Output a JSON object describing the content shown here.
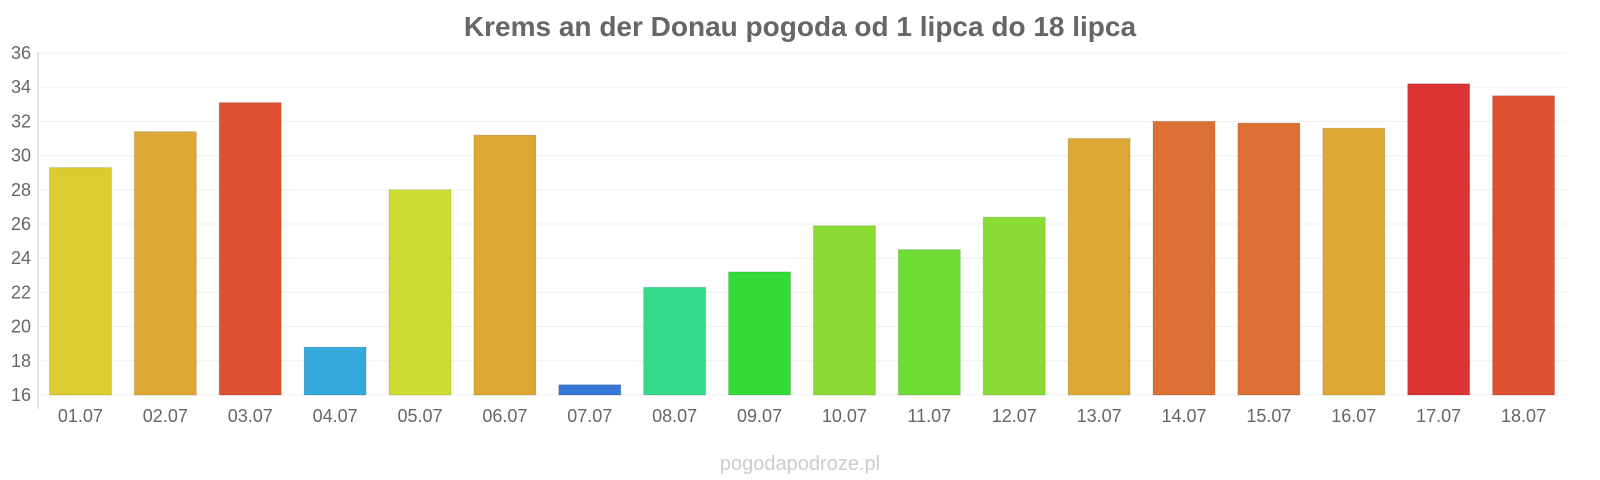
{
  "chart_data": {
    "type": "bar",
    "title": "Krems an der Donau pogoda od 1 lipca do 18 lipca",
    "xlabel": "",
    "ylabel": "",
    "ylim": [
      16,
      36
    ],
    "yticks": [
      16,
      18,
      20,
      22,
      24,
      26,
      28,
      30,
      32,
      34,
      36
    ],
    "grid": true,
    "legend": "none",
    "categories": [
      "01.07",
      "02.07",
      "03.07",
      "04.07",
      "05.07",
      "06.07",
      "07.07",
      "08.07",
      "09.07",
      "10.07",
      "11.07",
      "12.07",
      "13.07",
      "14.07",
      "15.07",
      "16.07",
      "17.07",
      "18.07"
    ],
    "values": [
      29.3,
      31.4,
      33.1,
      18.8,
      28.0,
      31.2,
      16.6,
      22.3,
      23.2,
      25.9,
      24.5,
      26.4,
      31.0,
      32.0,
      31.9,
      31.6,
      34.2,
      33.5
    ],
    "colors": [
      "#dccb31",
      "#dca833",
      "#dd5032",
      "#35a8dc",
      "#cddd32",
      "#dca833",
      "#3477d6",
      "#33da8a",
      "#33db37",
      "#8adc33",
      "#6ddc34",
      "#89dc33",
      "#dca833",
      "#dd7034",
      "#dd7034",
      "#dca833",
      "#dc3433",
      "#dd5032"
    ]
  },
  "watermark": "pogodapodroze.pl"
}
